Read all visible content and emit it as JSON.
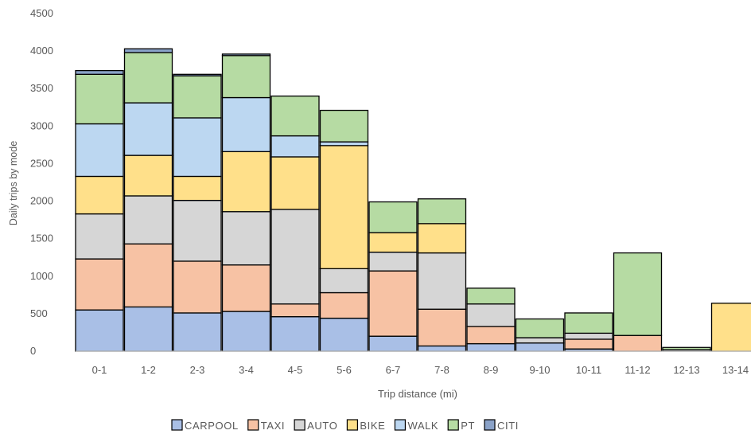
{
  "chart_data": {
    "type": "bar",
    "stacked": true,
    "title": "",
    "xlabel": "Trip distance (mi)",
    "ylabel": "Daily trips by mode",
    "ylim": [
      0,
      4500
    ],
    "yticks": [
      "0",
      "500",
      "1000",
      "1500",
      "2000",
      "2500",
      "3000",
      "3500",
      "4000",
      "4500"
    ],
    "grid": false,
    "legend_position": "bottom",
    "categories": [
      "0-1",
      "1-2",
      "2-3",
      "3-4",
      "4-5",
      "5-6",
      "6-7",
      "7-8",
      "8-9",
      "9-10",
      "10-11",
      "11-12",
      "12-13",
      "13-14"
    ],
    "series": [
      {
        "name": "CARPOOL",
        "color": "#a9bfe6",
        "values": [
          550,
          590,
          510,
          530,
          460,
          440,
          200,
          70,
          100,
          110,
          30,
          0,
          0,
          0
        ]
      },
      {
        "name": "TAXI",
        "color": "#f7c2a4",
        "values": [
          680,
          840,
          690,
          620,
          170,
          340,
          870,
          490,
          230,
          0,
          130,
          210,
          0,
          0
        ]
      },
      {
        "name": "AUTO",
        "color": "#d6d6d6",
        "values": [
          600,
          640,
          810,
          710,
          1260,
          320,
          250,
          750,
          300,
          70,
          80,
          0,
          20,
          0
        ]
      },
      {
        "name": "BIKE",
        "color": "#ffe08a",
        "values": [
          500,
          540,
          320,
          800,
          700,
          1640,
          260,
          390,
          0,
          0,
          0,
          0,
          0,
          640
        ]
      },
      {
        "name": "WALK",
        "color": "#bcd7f1",
        "values": [
          700,
          700,
          780,
          720,
          280,
          50,
          0,
          0,
          0,
          0,
          0,
          0,
          0,
          0
        ]
      },
      {
        "name": "PT",
        "color": "#b6dba3",
        "values": [
          660,
          670,
          560,
          560,
          530,
          420,
          410,
          330,
          210,
          250,
          270,
          1100,
          30,
          0
        ]
      },
      {
        "name": "CITI",
        "color": "#8aa2c8",
        "values": [
          50,
          50,
          20,
          20,
          0,
          0,
          0,
          0,
          0,
          0,
          0,
          0,
          0,
          0
        ]
      }
    ]
  }
}
